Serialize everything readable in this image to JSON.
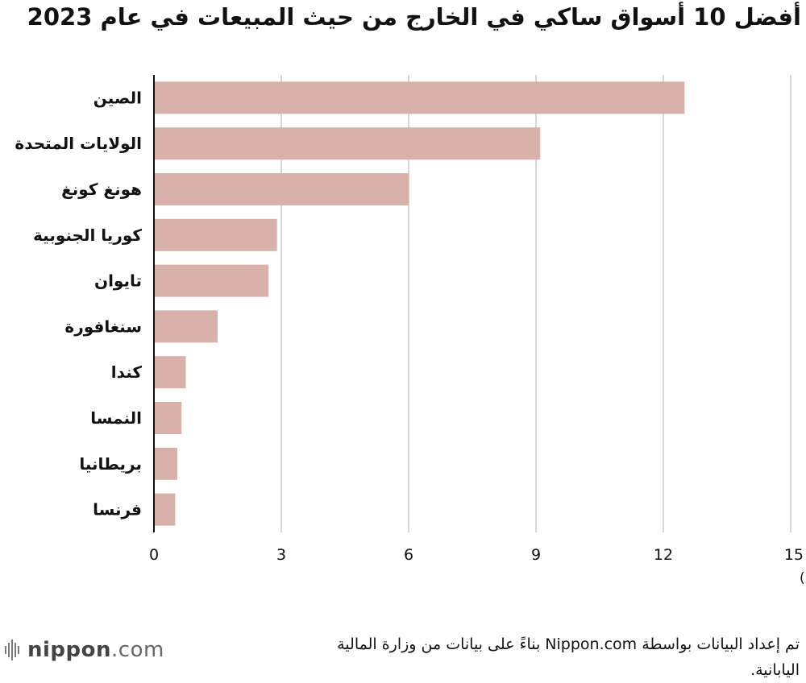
{
  "title": "أفضل 10 أسواق ساكي في الخارج من حيث المبيعات في عام 2023",
  "chart_data": {
    "type": "bar",
    "orientation": "horizontal",
    "categories": [
      "الصين",
      "الولايات المتحدة",
      "هونغ كونغ",
      "كوريا الجنوبية",
      "تايوان",
      "سنغافورة",
      "كندا",
      "النمسا",
      "بريطانيا",
      "فرنسا"
    ],
    "values": [
      12.5,
      9.1,
      6.0,
      2.9,
      2.7,
      1.5,
      0.75,
      0.65,
      0.55,
      0.5
    ],
    "xlim": [
      0,
      15
    ],
    "xticks": [
      "0",
      "3",
      "6",
      "9",
      "12",
      "15"
    ],
    "xlabel": "(مليار ين)",
    "grid": true,
    "bar_color": "#d8b1aa",
    "grid_color": "#c8c8c8"
  },
  "footer": {
    "source": "تم إعداد البيانات بواسطة Nippon.com بناءً على بيانات من وزارة المالية اليابانية."
  },
  "logo": {
    "text": "nippon.com",
    "brand": "nippon",
    "suffix": ".com"
  }
}
